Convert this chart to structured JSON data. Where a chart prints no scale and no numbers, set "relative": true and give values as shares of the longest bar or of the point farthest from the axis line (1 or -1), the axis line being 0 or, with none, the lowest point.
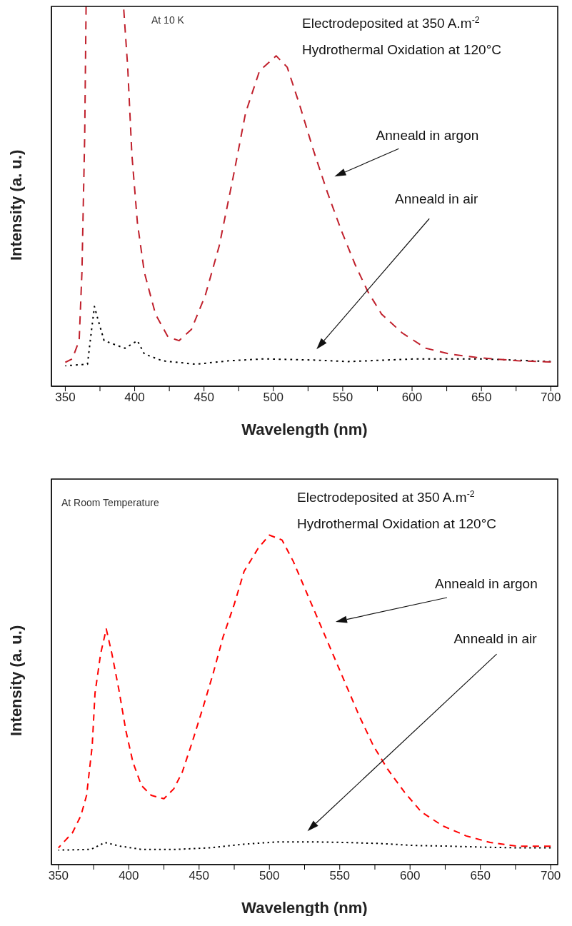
{
  "chart_data": [
    {
      "type": "line",
      "relative": true,
      "xlabel": "Wavelength (nm)",
      "ylabel": "Intensity (a. u.)",
      "xlim": [
        340,
        705
      ],
      "xticks": [
        350,
        {
          "value": 375,
          "label": null
        },
        400,
        {
          "value": 425,
          "label": null
        },
        450,
        {
          "value": 475,
          "label": null
        },
        500,
        {
          "value": 525,
          "label": null
        },
        550,
        {
          "value": 575,
          "label": null
        },
        600,
        {
          "value": 625,
          "label": null
        },
        650,
        {
          "value": 675,
          "label": null
        },
        700
      ],
      "annotations": [
        "At 10 K",
        "Electrodeposited at 350 A.m$^{-2}$",
        "Hydrothermal Oxidation at 120°C",
        "Anneald in argon",
        "Anneald in air"
      ],
      "series": [
        {
          "color": "#c0202c",
          "line_style": "dashed",
          "x": [
            350,
            355,
            360,
            362,
            364,
            365,
            366,
            391,
            392,
            395,
            398,
            402,
            407,
            415,
            424,
            432,
            441,
            451,
            461,
            471,
            480,
            490,
            502,
            510,
            519,
            529,
            539,
            549,
            559,
            568,
            578,
            593,
            610,
            627,
            646,
            676,
            700
          ],
          "values": [
            0.063,
            0.072,
            0.12,
            0.3,
            0.66,
            1,
            null,
            null,
            1,
            0.84,
            0.61,
            0.43,
            0.3,
            0.19,
            0.13,
            0.12,
            0.15,
            0.24,
            0.37,
            0.55,
            0.72,
            0.83,
            0.87,
            0.84,
            0.74,
            0.62,
            0.51,
            0.41,
            0.32,
            0.25,
            0.19,
            0.14,
            0.1,
            0.085,
            0.076,
            0.067,
            0.064
          ]
        },
        {
          "color": "#000000",
          "line_style": "dotted",
          "x": [
            350,
            366,
            368,
            371,
            374,
            378,
            393,
            402,
            407,
            420,
            444,
            468,
            493,
            529,
            554,
            602,
            651,
            700
          ],
          "values": [
            0.054,
            0.058,
            0.12,
            0.21,
            0.17,
            0.12,
            0.1,
            0.12,
            0.085,
            0.067,
            0.058,
            0.067,
            0.072,
            0.069,
            0.065,
            0.072,
            0.072,
            0.065
          ]
        }
      ]
    },
    {
      "type": "line",
      "relative": true,
      "xlabel": "Wavelength (nm)",
      "ylabel": "Intensity (a. u.)",
      "xlim": [
        345,
        705
      ],
      "xticks": [
        350,
        {
          "value": 375,
          "label": null
        },
        400,
        {
          "value": 425,
          "label": null
        },
        450,
        {
          "value": 475,
          "label": null
        },
        500,
        {
          "value": 525,
          "label": null
        },
        550,
        {
          "value": 575,
          "label": null
        },
        600,
        {
          "value": 625,
          "label": null
        },
        650,
        {
          "value": 675,
          "label": null
        },
        700
      ],
      "annotations": [
        "At Room Temperature",
        "Electrodeposited at 350 A.m$^{-2}$",
        "Hydrothermal Oxidation at 120°C",
        "Anneald in argon",
        "Anneald in air"
      ],
      "series": [
        {
          "color": "#ff0000",
          "line_style": "dashed",
          "x": [
            350,
            360,
            366,
            370,
            374,
            376,
            380,
            384,
            388,
            393,
            398,
            403,
            409,
            416,
            425,
            432,
            438,
            445,
            453,
            460,
            467,
            475,
            482,
            492,
            500,
            509,
            517,
            526,
            535,
            545,
            555,
            564,
            574,
            584,
            596,
            608,
            623,
            640,
            657,
            676,
            700
          ],
          "values": [
            0.051,
            0.097,
            0.149,
            0.21,
            0.36,
            0.52,
            0.64,
            0.715,
            0.64,
            0.53,
            0.405,
            0.31,
            0.24,
            0.21,
            0.2,
            0.23,
            0.28,
            0.37,
            0.48,
            0.58,
            0.69,
            0.79,
            0.89,
            0.96,
            1,
            0.985,
            0.92,
            0.83,
            0.74,
            0.64,
            0.54,
            0.45,
            0.36,
            0.29,
            0.22,
            0.16,
            0.118,
            0.087,
            0.067,
            0.056,
            0.056
          ]
        },
        {
          "color": "#000000",
          "line_style": "dotted",
          "x": [
            350,
            373,
            383,
            394,
            409,
            433,
            458,
            482,
            506,
            530,
            555,
            579,
            603,
            627,
            651,
            676,
            700
          ],
          "values": [
            0.044,
            0.046,
            0.067,
            0.056,
            0.046,
            0.046,
            0.051,
            0.062,
            0.069,
            0.069,
            0.067,
            0.064,
            0.058,
            0.056,
            0.053,
            0.051,
            0.051
          ]
        }
      ]
    }
  ]
}
